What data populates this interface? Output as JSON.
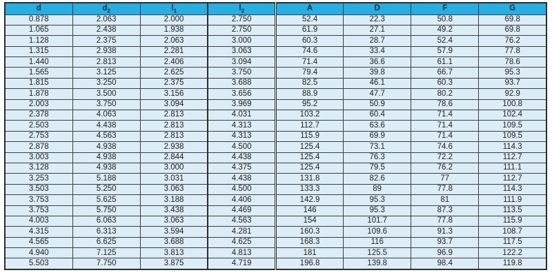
{
  "theme": {
    "header_bg": "#27aee3",
    "header_text": "#0d2f3e",
    "cell_bg": "#dcedf7",
    "cell_text": "#212121",
    "grid": "#3d3d3d",
    "frame": "#2b2b2b"
  },
  "chart_data": {
    "type": "table",
    "columns": [
      {
        "base": "d",
        "sub": ""
      },
      {
        "base": "d",
        "sub": "2"
      },
      {
        "base": "l",
        "sub": "1"
      },
      {
        "base": "l",
        "sub": "2"
      },
      {
        "base": "A",
        "sub": ""
      },
      {
        "base": "D",
        "sub": ""
      },
      {
        "base": "F",
        "sub": ""
      },
      {
        "base": "G",
        "sub": ""
      }
    ],
    "rows": [
      [
        "0.878",
        "2.063",
        "2.000",
        "2.750",
        "52.4",
        "22.3",
        "50.8",
        "69.8"
      ],
      [
        "1.065",
        "2.438",
        "1.938",
        "2.750",
        "61.9",
        "27.1",
        "49.2",
        "69.8"
      ],
      [
        "1.128",
        "2.375",
        "2.063",
        "3.000",
        "60.3",
        "28.7",
        "52.4",
        "76.2"
      ],
      [
        "1.315",
        "2.938",
        "2.281",
        "3.063",
        "74.6",
        "33.4",
        "57.9",
        "77.8"
      ],
      [
        "1.440",
        "2.813",
        "2.406",
        "3.094",
        "71.4",
        "36.6",
        "61.1",
        "78.6"
      ],
      [
        "1.565",
        "3.125",
        "2.625",
        "3.750",
        "79.4",
        "39.8",
        "66.7",
        "95.3"
      ],
      [
        "1.815",
        "3.250",
        "2.375",
        "3.688",
        "82.5",
        "46.1",
        "60.3",
        "93.7"
      ],
      [
        "1.878",
        "3.500",
        "3.156",
        "3.656",
        "88.9",
        "47.7",
        "80.2",
        "92.9"
      ],
      [
        "2.003",
        "3.750",
        "3.094",
        "3.969",
        "95.2",
        "50.9",
        "78.6",
        "100.8"
      ],
      [
        "2.378",
        "4.063",
        "2.813",
        "4.031",
        "103.2",
        "60.4",
        "71.4",
        "102.4"
      ],
      [
        "2.503",
        "4.438",
        "2.813",
        "4.313",
        "112.7",
        "63.6",
        "71.4",
        "109.5"
      ],
      [
        "2.753",
        "4.563",
        "2.813",
        "4.313",
        "115.9",
        "69.9",
        "71.4",
        "109.5"
      ],
      [
        "2.878",
        "4.938",
        "2.938",
        "4.500",
        "125.4",
        "73.1",
        "74.6",
        "114.3"
      ],
      [
        "3.003",
        "4.938",
        "2.844",
        "4.438",
        "125.4",
        "76.3",
        "72.2",
        "112.7"
      ],
      [
        "3.128",
        "4.938",
        "3.000",
        "4.375",
        "125.4",
        "79.5",
        "76.2",
        "111.1"
      ],
      [
        "3.253",
        "5.188",
        "3.031",
        "4.438",
        "131.8",
        "82.6",
        "77",
        "112.7"
      ],
      [
        "3.503",
        "5.250",
        "3.063",
        "4.500",
        "133.3",
        "89",
        "77.8",
        "114.3"
      ],
      [
        "3.753",
        "5.625",
        "3.188",
        "4.406",
        "142.9",
        "95.3",
        "81",
        "111.9"
      ],
      [
        "3.753",
        "5.750",
        "3.438",
        "4.469",
        "146",
        "95.3",
        "87.3",
        "113.5"
      ],
      [
        "4.003",
        "6.063",
        "3.063",
        "4.563",
        "154",
        "101.7",
        "77.8",
        "115.9"
      ],
      [
        "4.315",
        "6.313",
        "3.594",
        "4.281",
        "160.3",
        "109.6",
        "91.3",
        "108.7"
      ],
      [
        "4.565",
        "6.625",
        "3.688",
        "4.625",
        "168.3",
        "116",
        "93.7",
        "117.5"
      ],
      [
        "4.940",
        "7.125",
        "3.813",
        "4.813",
        "181",
        "125.5",
        "96.9",
        "122.2"
      ],
      [
        "5.503",
        "7.750",
        "3.875",
        "4.719",
        "196.8",
        "139.8",
        "98.4",
        "119.8"
      ]
    ]
  }
}
